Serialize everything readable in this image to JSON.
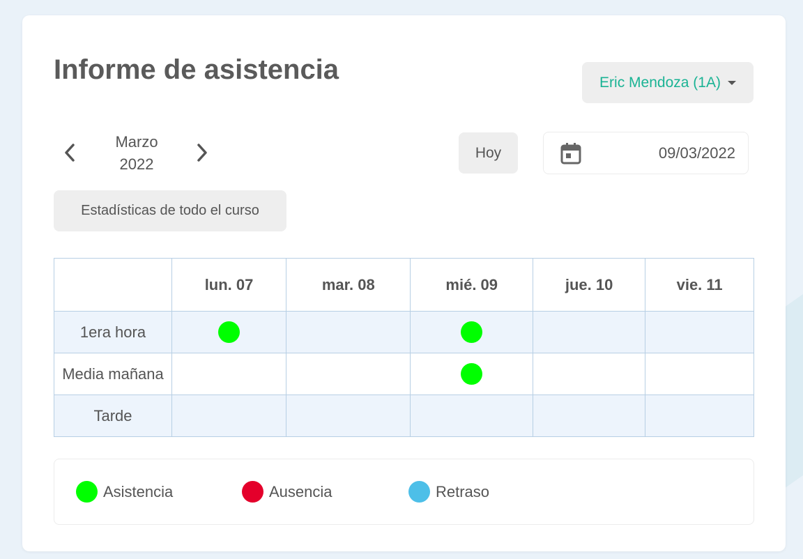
{
  "title": "Informe de asistencia",
  "student_selector": {
    "label": "Eric Mendoza (1A)"
  },
  "period": {
    "month": "Marzo",
    "year": "2022"
  },
  "today_label": "Hoy",
  "date_field": {
    "value": "09/03/2022"
  },
  "stats_button": "Estadísticas de todo el curso",
  "colors": {
    "accent": "#1ab394",
    "asistencia": "#00ff00",
    "ausencia": "#e4002b",
    "retraso": "#4dbfe8"
  },
  "table": {
    "days": [
      "lun. 07",
      "mar. 08",
      "mié. 09",
      "jue. 10",
      "vie. 11"
    ],
    "rows": [
      {
        "label": "1era hora",
        "cells": [
          "asistencia",
          "",
          "asistencia",
          "",
          ""
        ]
      },
      {
        "label": "Media mañana",
        "cells": [
          "",
          "",
          "asistencia",
          "",
          ""
        ]
      },
      {
        "label": "Tarde",
        "cells": [
          "",
          "",
          "",
          "",
          ""
        ]
      }
    ]
  },
  "legend": [
    {
      "key": "asistencia",
      "label": "Asistencia"
    },
    {
      "key": "ausencia",
      "label": "Ausencia"
    },
    {
      "key": "retraso",
      "label": "Retraso"
    }
  ]
}
